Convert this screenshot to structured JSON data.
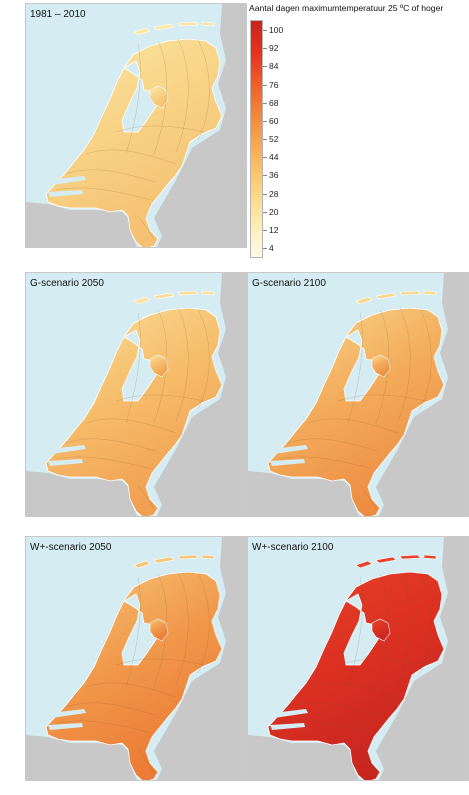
{
  "legend": {
    "title": "Aantal dagen maximumtemperatuur 25 ºC of  hoger",
    "ticks": [
      "100",
      "92",
      "84",
      "76",
      "68",
      "60",
      "52",
      "44",
      "36",
      "28",
      "20",
      "12",
      "4"
    ],
    "gradient_top": "#c8231f",
    "gradient_colors": [
      "#c8231f",
      "#e7341f",
      "#f0642b",
      "#f39042",
      "#f8b45c",
      "#fbd57e",
      "#fdebb0",
      "#fffbe8"
    ]
  },
  "panels": [
    {
      "id": "1981-2010",
      "title": "1981 – 2010",
      "colors": [
        "#fbe7a3",
        "#f8d386",
        "#f5c070"
      ]
    },
    {
      "id": "g-2050",
      "title": "G-scenario 2050",
      "colors": [
        "#fbe09a",
        "#f6be6c",
        "#f19f50"
      ]
    },
    {
      "id": "g-2100",
      "title": "G-scenario 2100",
      "colors": [
        "#f9d98f",
        "#f3ad5c",
        "#ee8d42"
      ]
    },
    {
      "id": "w-2050",
      "title": "W+-scenario 2050",
      "colors": [
        "#f6c779",
        "#f19a4c",
        "#ec7b35"
      ]
    },
    {
      "id": "w-2100",
      "title": "W+-scenario 2100",
      "colors": [
        "#e7422a",
        "#dc3122",
        "#c7261f"
      ]
    }
  ]
}
